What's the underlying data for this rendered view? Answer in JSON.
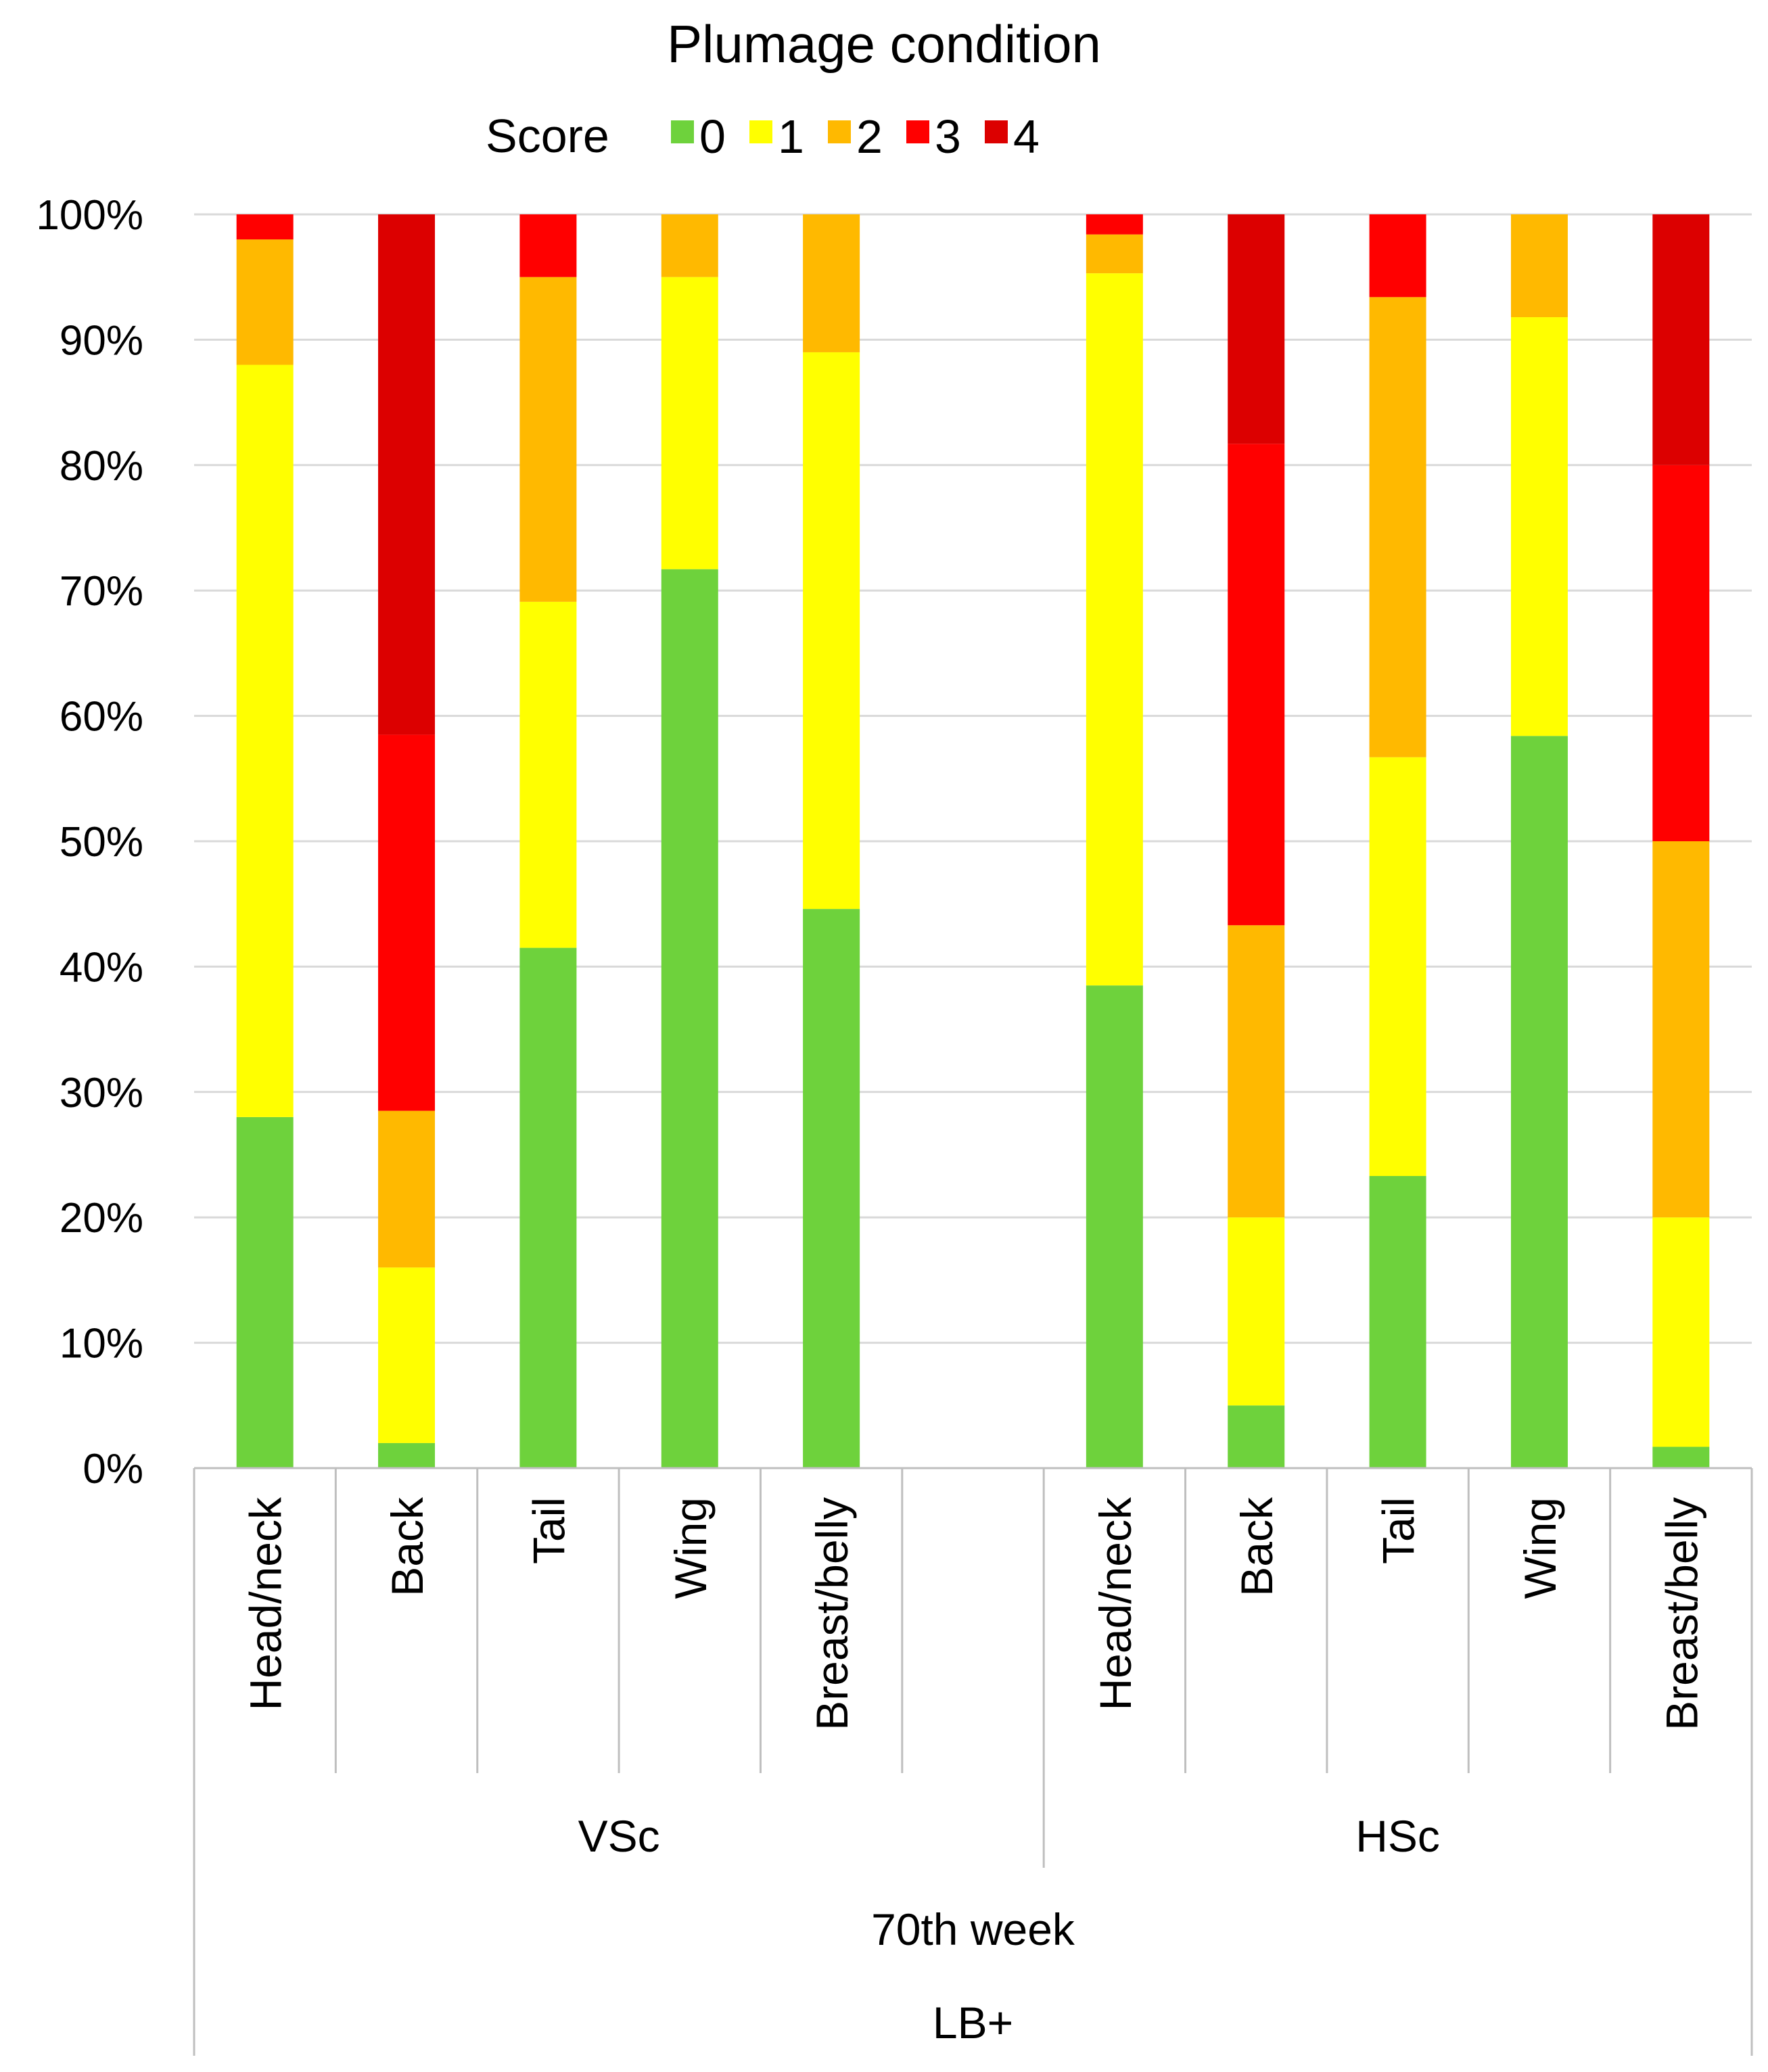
{
  "chart_data": {
    "type": "bar",
    "stacked": true,
    "percent": true,
    "title": "Plumage condition",
    "legend_title": "Score",
    "legend_position": "top",
    "ylim": [
      0,
      100
    ],
    "y_ticks": [
      "0%",
      "10%",
      "20%",
      "30%",
      "40%",
      "50%",
      "60%",
      "70%",
      "80%",
      "90%",
      "100%"
    ],
    "categories": [
      {
        "label": "Head/neck"
      },
      {
        "label": "Back"
      },
      {
        "label": "Tail"
      },
      {
        "label": "Wing"
      },
      {
        "label": "Breast/belly"
      },
      {
        "label": ""
      },
      {
        "label": "Head/neck"
      },
      {
        "label": "Back"
      },
      {
        "label": "Tail"
      },
      {
        "label": "Wing"
      },
      {
        "label": "Breast/belly"
      }
    ],
    "groups": [
      {
        "label": "VSc",
        "span": [
          0,
          5
        ]
      },
      {
        "label": "HSc",
        "span": [
          6,
          10
        ]
      }
    ],
    "level2": "70th week",
    "level3": "LB+",
    "series": [
      {
        "name": "0",
        "color": "#6ed23c",
        "values": [
          28,
          2,
          41.5,
          71.7,
          44.6,
          null,
          38.5,
          5,
          23.3,
          58.4,
          1.7
        ]
      },
      {
        "name": "1",
        "color": "#ffff00",
        "values": [
          60,
          14,
          27.6,
          23.3,
          44.4,
          null,
          56.8,
          15,
          33.4,
          33.4,
          18.3
        ]
      },
      {
        "name": "2",
        "color": "#ffb900",
        "values": [
          10,
          12.5,
          25.9,
          5,
          11,
          null,
          3.1,
          23.3,
          36.7,
          8.2,
          30
        ]
      },
      {
        "name": "3",
        "color": "#ff0000",
        "values": [
          2,
          30,
          5,
          0,
          0,
          null,
          1.6,
          38.4,
          6.6,
          0,
          30
        ]
      },
      {
        "name": "4",
        "color": "#dc0000",
        "values": [
          0,
          41.5,
          0,
          0,
          0,
          null,
          0,
          18.3,
          0,
          0,
          20
        ]
      }
    ]
  },
  "colors": {
    "gridline": "#d9d9d9",
    "axis": "#bfbfbf",
    "text": "#000000"
  }
}
